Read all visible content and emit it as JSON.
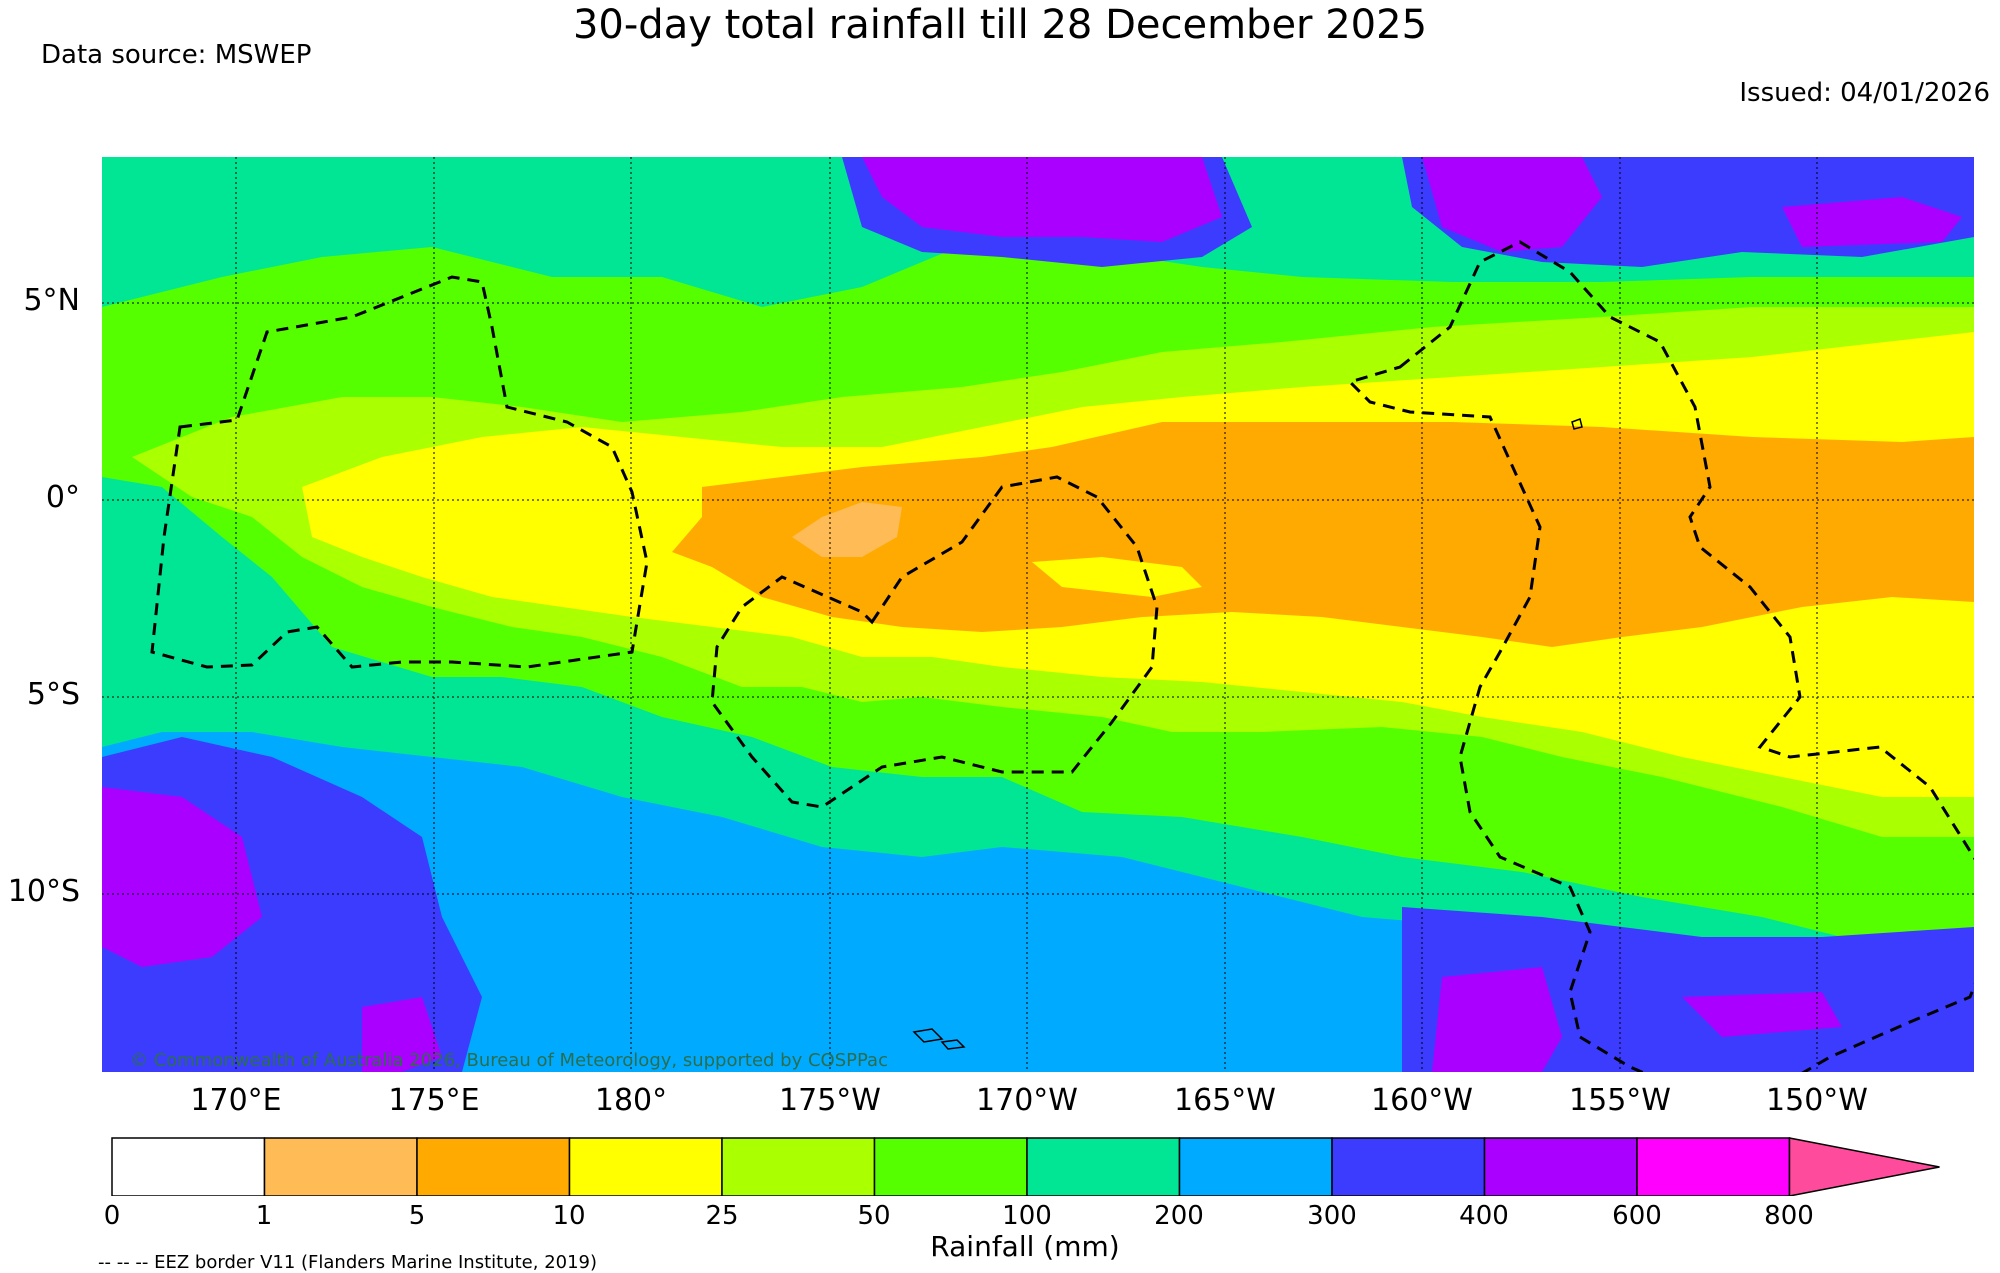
{
  "title": "30-day total rainfall till 28 December 2025",
  "data_source": "Data source: MSWEP",
  "issued": "Issued: 04/01/2026",
  "copyright": "© Commonwealth of Australia 2026, Bureau of Meteorology, supported by COSPPac",
  "eez_note": "-- -- -- EEZ border V11 (Flanders Marine Institute, 2019)",
  "lat_labels": [
    "5°N",
    "0°",
    "5°S",
    "10°S"
  ],
  "lon_labels": [
    "170°E",
    "175°E",
    "180°",
    "175°W",
    "170°W",
    "165°W",
    "160°W",
    "155°W",
    "150°W"
  ],
  "colorbar": {
    "label": "Rainfall (mm)",
    "ticks": [
      "0",
      "1",
      "5",
      "10",
      "25",
      "50",
      "100",
      "200",
      "300",
      "400",
      "600",
      "800"
    ],
    "colors": [
      "#ffffff",
      "#ffbb55",
      "#ffaa00",
      "#ffff00",
      "#aaff00",
      "#55ff00",
      "#00e695",
      "#00aaff",
      "#3c3cff",
      "#aa00ff",
      "#ff00ff",
      "#ff4b9b"
    ]
  },
  "map": {
    "extent": {
      "lon_min": 166.5,
      "lon_max": 213.9,
      "lat_min": -14.5,
      "lat_max": 8.7
    },
    "gridlines": "dotted"
  }
}
